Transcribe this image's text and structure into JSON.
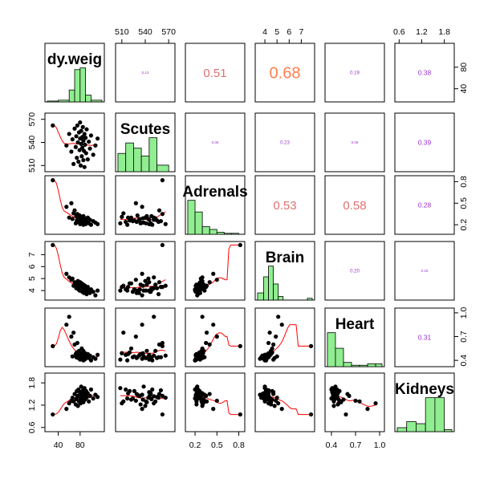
{
  "chart_data": {
    "type": "scatter-matrix",
    "variables": [
      "Body.weight",
      "Scutes",
      "Adrenals",
      "Brain",
      "Heart",
      "Kidneys"
    ],
    "diagonal_labels": [
      "dy.weig",
      "Scutes",
      "Adrenals",
      "Brain",
      "Heart",
      "Kidneys"
    ],
    "ranges": [
      [
        20,
        120
      ],
      [
        505,
        575
      ],
      [
        0.1,
        0.85
      ],
      [
        3.4,
        7.9
      ],
      [
        0.35,
        1.03
      ],
      [
        0.55,
        2.0
      ]
    ],
    "ticks": {
      "Body.weight": {
        "values": [
          40,
          80
        ],
        "labels": [
          "40",
          "80"
        ]
      },
      "Scutes": {
        "values": [
          510,
          540,
          570
        ],
        "labels": [
          "510",
          "540",
          "570"
        ]
      },
      "Adrenals": {
        "values": [
          0.2,
          0.5,
          0.8
        ],
        "labels": [
          "0.2",
          "0.5",
          "0.8"
        ]
      },
      "Brain": {
        "values": [
          4,
          5,
          6,
          7
        ],
        "labels": [
          "4",
          "5",
          "6",
          "7"
        ]
      },
      "Heart": {
        "values": [
          0.4,
          0.7,
          1.0
        ],
        "labels": [
          "0.4",
          "0.7",
          "1.0"
        ]
      },
      "Kidneys": {
        "values": [
          0.6,
          1.2,
          1.8
        ],
        "labels": [
          "0.6",
          "1.2",
          "1.8"
        ]
      }
    },
    "histograms": [
      {
        "variable": "Body.weight",
        "bins": [
          [
            20,
            40,
            1
          ],
          [
            40,
            60,
            2
          ],
          [
            60,
            70,
            14
          ],
          [
            70,
            80,
            38
          ],
          [
            80,
            90,
            40
          ],
          [
            90,
            100,
            8
          ],
          [
            100,
            120,
            2
          ]
        ]
      },
      {
        "variable": "Scutes",
        "bins": [
          [
            505,
            515,
            14
          ],
          [
            515,
            525,
            22
          ],
          [
            525,
            535,
            18
          ],
          [
            535,
            545,
            12
          ],
          [
            545,
            555,
            26
          ],
          [
            555,
            570,
            5
          ]
        ]
      },
      {
        "variable": "Adrenals",
        "bins": [
          [
            0.1,
            0.2,
            35
          ],
          [
            0.2,
            0.3,
            23
          ],
          [
            0.3,
            0.4,
            8
          ],
          [
            0.4,
            0.5,
            5
          ],
          [
            0.5,
            0.6,
            2
          ],
          [
            0.6,
            0.7,
            1
          ],
          [
            0.7,
            0.8,
            1
          ]
        ]
      },
      {
        "variable": "Brain",
        "bins": [
          [
            3.4,
            3.9,
            4
          ],
          [
            3.9,
            4.3,
            13
          ],
          [
            4.3,
            4.7,
            19
          ],
          [
            4.7,
            5.1,
            9
          ],
          [
            5.1,
            5.5,
            2
          ],
          [
            5.5,
            7.9,
            0
          ],
          [
            7.5,
            7.9,
            1
          ]
        ]
      },
      {
        "variable": "Heart",
        "bins": [
          [
            0.35,
            0.45,
            24
          ],
          [
            0.45,
            0.55,
            13
          ],
          [
            0.55,
            0.65,
            3
          ],
          [
            0.65,
            0.75,
            1
          ],
          [
            0.75,
            0.85,
            1
          ],
          [
            0.85,
            0.95,
            2
          ],
          [
            0.95,
            1.03,
            2
          ]
        ]
      },
      {
        "variable": "Kidneys",
        "bins": [
          [
            0.55,
            0.8,
            2
          ],
          [
            0.8,
            1.05,
            5
          ],
          [
            1.05,
            1.3,
            4
          ],
          [
            1.3,
            1.55,
            17
          ],
          [
            1.55,
            1.8,
            17
          ],
          [
            1.8,
            2.0,
            1
          ]
        ]
      }
    ],
    "correlations": [
      {
        "row": 0,
        "col": 1,
        "label": "0.13",
        "value": 0.13
      },
      {
        "row": 0,
        "col": 2,
        "label": "0.51",
        "value": 0.51
      },
      {
        "row": 0,
        "col": 3,
        "label": "0.68",
        "value": 0.68
      },
      {
        "row": 0,
        "col": 4,
        "label": "0.19",
        "value": 0.19
      },
      {
        "row": 0,
        "col": 5,
        "label": "0.38",
        "value": 0.38
      },
      {
        "row": 1,
        "col": 2,
        "label": "0.06",
        "value": 0.06
      },
      {
        "row": 1,
        "col": 3,
        "label": "0.23",
        "value": 0.23
      },
      {
        "row": 1,
        "col": 4,
        "label": "0.06",
        "value": 0.06
      },
      {
        "row": 1,
        "col": 5,
        "label": "0.39",
        "value": 0.39
      },
      {
        "row": 2,
        "col": 3,
        "label": "0.53",
        "value": 0.53
      },
      {
        "row": 2,
        "col": 4,
        "label": "0.58",
        "value": 0.58
      },
      {
        "row": 2,
        "col": 5,
        "label": "0.28",
        "value": 0.28
      },
      {
        "row": 3,
        "col": 4,
        "label": "0.20",
        "value": 0.2
      },
      {
        "row": 3,
        "col": 5,
        "label": "0.16",
        "value": 0.16
      },
      {
        "row": 4,
        "col": 5,
        "label": "0.31",
        "value": 0.31
      }
    ],
    "observations": [
      [
        30,
        562,
        0.82,
        7.8,
        0.58,
        0.95
      ],
      [
        55,
        536,
        0.45,
        5.4,
        0.85,
        1.1
      ],
      [
        60,
        551,
        0.3,
        5.1,
        0.95,
        1.25
      ],
      [
        64,
        528,
        0.5,
        4.9,
        0.7,
        1.32
      ],
      [
        66,
        544,
        0.28,
        5.0,
        0.45,
        1.4
      ],
      [
        68,
        512,
        0.36,
        4.4,
        0.75,
        1.3
      ],
      [
        70,
        558,
        0.4,
        4.7,
        0.6,
        1.5
      ],
      [
        72,
        534,
        0.22,
        4.5,
        0.48,
        1.22
      ],
      [
        73,
        548,
        0.32,
        4.2,
        0.44,
        1.36
      ],
      [
        74,
        520,
        0.26,
        4.6,
        0.5,
        1.58
      ],
      [
        75,
        562,
        0.35,
        4.3,
        0.62,
        1.45
      ],
      [
        76,
        540,
        0.3,
        4.8,
        0.43,
        1.18
      ],
      [
        77,
        515,
        0.24,
        4.1,
        0.47,
        1.62
      ],
      [
        78,
        553,
        0.29,
        4.5,
        0.52,
        1.3
      ],
      [
        79,
        530,
        0.33,
        4.0,
        0.44,
        1.48
      ],
      [
        80,
        566,
        0.21,
        4.4,
        0.46,
        1.4
      ],
      [
        80,
        545,
        0.27,
        4.7,
        0.41,
        1.55
      ],
      [
        81,
        510,
        0.31,
        4.3,
        0.49,
        1.25
      ],
      [
        82,
        538,
        0.23,
        4.0,
        0.45,
        1.7
      ],
      [
        82,
        555,
        0.26,
        4.2,
        0.43,
        1.42
      ],
      [
        83,
        522,
        0.3,
        4.6,
        0.55,
        1.35
      ],
      [
        84,
        547,
        0.22,
        3.9,
        0.42,
        1.52
      ],
      [
        84,
        533,
        0.28,
        4.1,
        0.47,
        1.45
      ],
      [
        85,
        560,
        0.25,
        4.3,
        0.44,
        1.6
      ],
      [
        86,
        517,
        0.2,
        4.0,
        0.4,
        1.38
      ],
      [
        86,
        542,
        0.32,
        4.5,
        0.52,
        1.28
      ],
      [
        87,
        529,
        0.24,
        3.8,
        0.43,
        1.5
      ],
      [
        88,
        551,
        0.27,
        4.2,
        0.46,
        1.44
      ],
      [
        88,
        508,
        0.22,
        4.0,
        0.41,
        1.66
      ],
      [
        89,
        537,
        0.29,
        4.4,
        0.49,
        1.35
      ],
      [
        90,
        546,
        0.21,
        3.9,
        0.42,
        1.47
      ],
      [
        91,
        526,
        0.26,
        4.1,
        0.45,
        1.58
      ],
      [
        92,
        557,
        0.24,
        3.7,
        0.44,
        1.4
      ],
      [
        94,
        518,
        0.3,
        4.3,
        0.48,
        1.52
      ],
      [
        96,
        541,
        0.22,
        4.0,
        0.43,
        1.3
      ],
      [
        98,
        532,
        0.27,
        3.8,
        0.46,
        1.45
      ],
      [
        100,
        549,
        0.2,
        4.1,
        0.4,
        1.62
      ],
      [
        104,
        524,
        0.25,
        3.9,
        0.44,
        1.38
      ],
      [
        108,
        536,
        0.23,
        3.6,
        0.42,
        1.48
      ],
      [
        112,
        545,
        0.21,
        4.0,
        0.47,
        1.42
      ]
    ],
    "colors": {
      "histogram_fill": "#90ee90",
      "point": "#000000",
      "smooth_line": "#ff0000",
      "strong_correlation_text": "#ff7f50",
      "correlation_text": "#e07070",
      "weak_correlation_text": "#9932cc"
    },
    "smooth_lines": true,
    "grid": false
  }
}
